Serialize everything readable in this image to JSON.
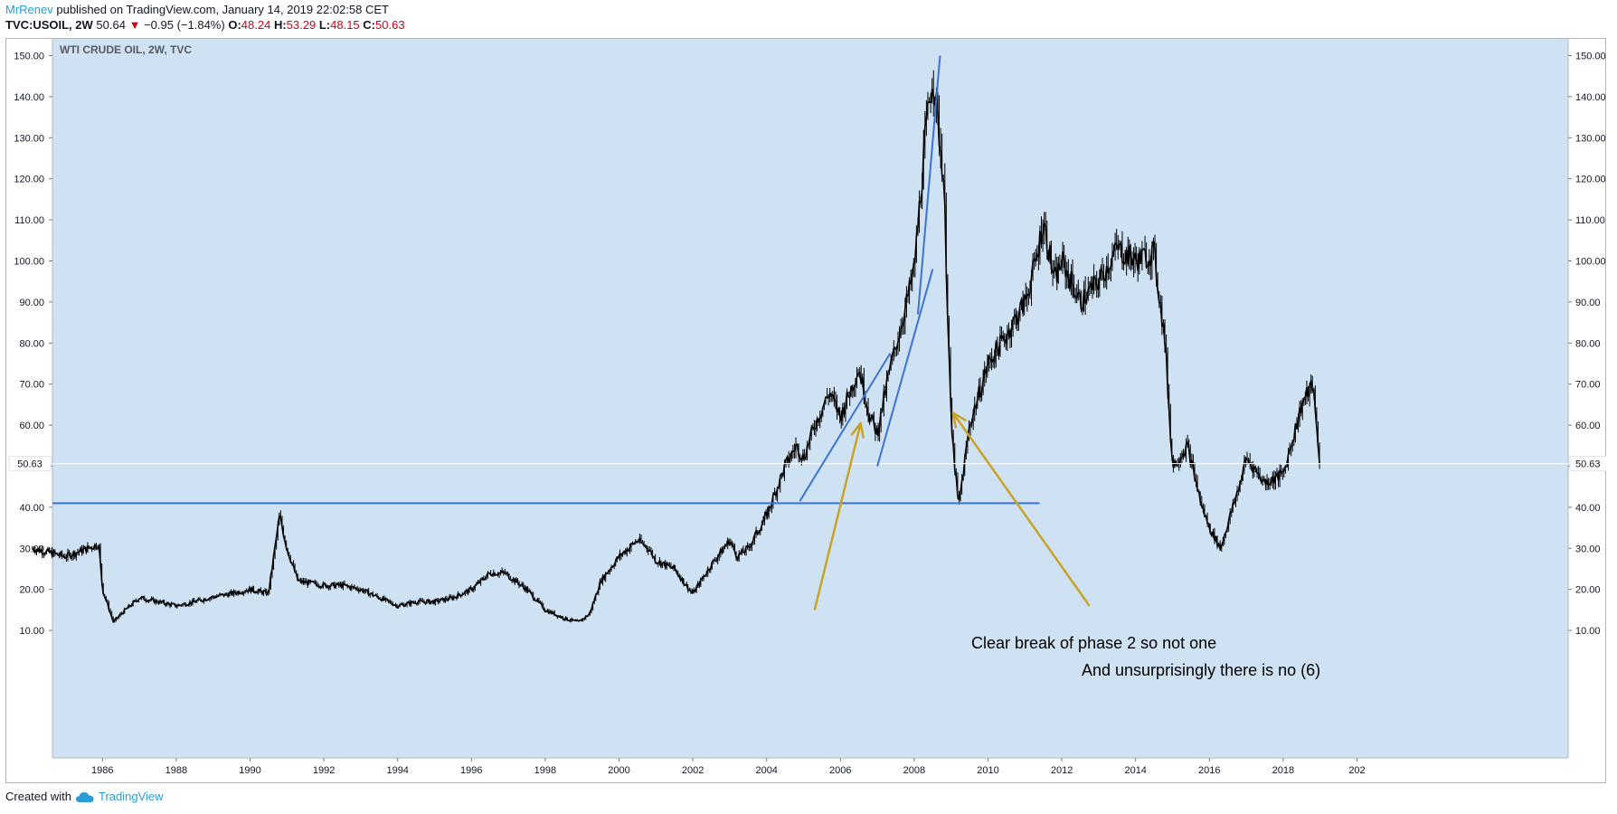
{
  "header": {
    "user": "MrRenev",
    "published": " published on TradingView.com, January 14, 2019 22:02:58 CET",
    "symbol": "TVC:USOIL, 2W",
    "last": "50.64",
    "arrow": "▼",
    "change": "−0.95 (−1.84%)",
    "o_label": "O:",
    "o_value": "48.24",
    "h_label": "H:",
    "h_value": "53.29",
    "l_label": "L:",
    "l_value": "48.15",
    "c_label": "C:",
    "c_value": "50.63"
  },
  "footer": {
    "created_with": "Created with",
    "brand": "TradingView"
  },
  "colors": {
    "chart_bg": "#cfe2f3",
    "candle": "#000000",
    "trendline": "#3a73d0",
    "arrow": "#c9a227",
    "user": "#2a9bd6",
    "down": "#d0021b"
  },
  "chart_data": {
    "type": "line",
    "title": "WTI CRUDE OIL, 2W, TVC",
    "xlabel": "",
    "ylabel": "",
    "xlim": [
      1984.0,
      2020.0
    ],
    "ylim": [
      3,
      153
    ],
    "x_ticks": [
      "1986",
      "1988",
      "1990",
      "1992",
      "1994",
      "1996",
      "1998",
      "2000",
      "2002",
      "2004",
      "2006",
      "2008",
      "2010",
      "2012",
      "2014",
      "2016",
      "2018",
      "202"
    ],
    "y_ticks": [
      "10.00",
      "20.00",
      "30.00",
      "40.00",
      "50.00",
      "60.00",
      "70.00",
      "80.00",
      "90.00",
      "100.00",
      "110.00",
      "120.00",
      "130.00",
      "140.00",
      "150.00"
    ],
    "last_price_label": "50.63",
    "last_price": 50.63,
    "series": [
      {
        "x": [
          1984.1,
          1985.0,
          1985.9,
          1986.0,
          1986.3,
          1986.5,
          1987.0,
          1987.5,
          1988.0,
          1988.5,
          1988.9,
          1989.5,
          1990.0,
          1990.5,
          1990.8,
          1991.0,
          1991.3,
          1992.0,
          1992.5,
          1993.0,
          1993.5,
          1994.0,
          1994.5,
          1995.0,
          1995.5,
          1996.0,
          1996.5,
          1996.9,
          1997.5,
          1998.0,
          1998.5,
          1998.9,
          1999.2,
          1999.5,
          2000.0,
          2000.5,
          2000.8,
          2001.0,
          2001.5,
          2001.9,
          2002.0,
          2002.5,
          2003.0,
          2003.2,
          2003.5,
          2004.0,
          2004.5,
          2004.8,
          2005.0,
          2005.3,
          2005.7,
          2006.0,
          2006.5,
          2006.8,
          2007.0,
          2007.3,
          2007.8,
          2008.0,
          2008.3,
          2008.5,
          2008.8,
          2009.0,
          2009.2,
          2009.5,
          2010.0,
          2010.5,
          2011.0,
          2011.3,
          2011.5,
          2011.8,
          2012.0,
          2012.5,
          2013.0,
          2013.5,
          2014.0,
          2014.5,
          2014.8,
          2015.0,
          2015.4,
          2015.8,
          2016.0,
          2016.3,
          2016.8,
          2017.0,
          2017.5,
          2018.0,
          2018.5,
          2018.8,
          2019.0
        ],
        "y": [
          30,
          28,
          31,
          20,
          12,
          14,
          18,
          17,
          16,
          17,
          18,
          19,
          20,
          19,
          38,
          30,
          22,
          21,
          21,
          20,
          18,
          16,
          17,
          17,
          18,
          20,
          24,
          24,
          20,
          15,
          13,
          12,
          14,
          22,
          28,
          32,
          30,
          27,
          25,
          20,
          19,
          26,
          32,
          28,
          30,
          38,
          50,
          55,
          52,
          60,
          68,
          62,
          74,
          62,
          58,
          72,
          90,
          98,
          130,
          146,
          120,
          60,
          40,
          60,
          75,
          82,
          90,
          100,
          110,
          95,
          100,
          90,
          95,
          103,
          100,
          102,
          80,
          50,
          55,
          40,
          35,
          30,
          45,
          52,
          46,
          48,
          65,
          70,
          50
        ]
      }
    ],
    "annotations": [
      {
        "text": "Clear break of phase 2 so not one"
      },
      {
        "text": "And unsurprisingly there is no (6)"
      }
    ]
  }
}
